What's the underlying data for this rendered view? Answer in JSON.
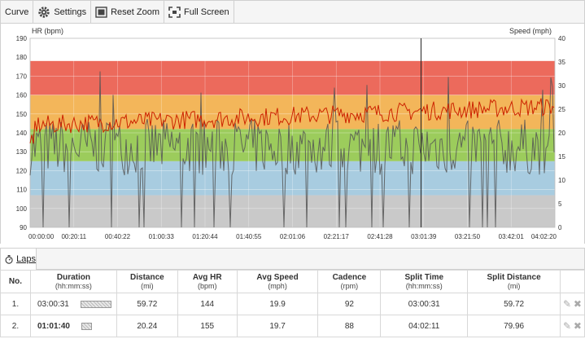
{
  "toolbar": {
    "curve_label": "Curve",
    "settings_label": "Settings",
    "reset_zoom_label": "Reset Zoom",
    "full_screen_label": "Full Screen"
  },
  "chart": {
    "left_axis_label": "HR (bpm)",
    "right_axis_label": "Speed (mph)",
    "hr_ticks": [
      "190",
      "180",
      "170",
      "160",
      "150",
      "140",
      "130",
      "120",
      "110",
      "100",
      "90"
    ],
    "speed_ticks": [
      "40",
      "35",
      "30",
      "25",
      "20",
      "15",
      "10",
      "5",
      "0"
    ],
    "time_ticks": [
      "00:00:00",
      "00:20:11",
      "00:40:22",
      "01:00:33",
      "01:20:44",
      "01:40:55",
      "02:01:06",
      "02:21:17",
      "02:41:28",
      "03:01:39",
      "03:21:50",
      "03:42:01",
      "04:02:20"
    ],
    "hr_range": [
      90,
      190
    ],
    "zones": [
      {
        "from": 90,
        "to": 107,
        "color": "#c9c9c9"
      },
      {
        "from": 107,
        "to": 125,
        "color": "#a8cce0"
      },
      {
        "from": 125,
        "to": 142,
        "color": "#9ccc5c"
      },
      {
        "from": 142,
        "to": 160,
        "color": "#f3b65a"
      },
      {
        "from": 160,
        "to": 178,
        "color": "#ec6a5c"
      }
    ],
    "marker_time": "03:00:31"
  },
  "laps_tab": {
    "label": "Laps"
  },
  "table": {
    "headers": [
      {
        "main": "No.",
        "sub": ""
      },
      {
        "main": "Duration",
        "sub": "(hh:mm:ss)"
      },
      {
        "main": "Distance",
        "sub": "(mi)"
      },
      {
        "main": "Avg HR",
        "sub": "(bpm)"
      },
      {
        "main": "Avg Speed",
        "sub": "(mph)"
      },
      {
        "main": "Cadence",
        "sub": "(rpm)"
      },
      {
        "main": "Split Time",
        "sub": "(hh:mm:ss)"
      },
      {
        "main": "Split Distance",
        "sub": "(mi)"
      }
    ],
    "rows": [
      {
        "no": "1.",
        "duration": "03:00:31",
        "duration_fraction": 0.747,
        "distance": "59.72",
        "avg_hr": "144",
        "avg_speed": "19.9",
        "cadence": "92",
        "split_time": "03:00:31",
        "split_distance": "59.72"
      },
      {
        "no": "2.",
        "duration": "01:01:40",
        "duration_fraction": 0.253,
        "distance": "20.24",
        "avg_hr": "155",
        "avg_speed": "19.7",
        "cadence": "88",
        "split_time": "04:02:11",
        "split_distance": "79.96"
      }
    ]
  },
  "colors": {
    "hr_line": "#cc2200",
    "speed_line": "#555555"
  }
}
